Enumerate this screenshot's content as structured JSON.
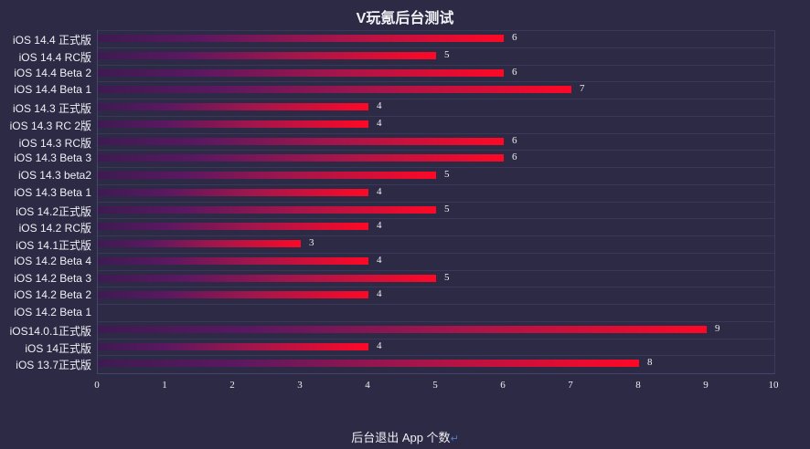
{
  "title": "V玩氪后台测试",
  "xlabel": "后台退出 App 个数",
  "xlabel_mark": "↵",
  "colors": {
    "background": "#2c2a45",
    "bar_start": "#3e1a52",
    "bar_end": "#ff0826",
    "text": "#f0f0f4"
  },
  "chart_data": {
    "type": "bar",
    "orientation": "horizontal",
    "title": "V玩氪后台测试",
    "xlabel": "后台退出 App 个数",
    "ylabel": "",
    "xlim": [
      0,
      10
    ],
    "xticks": [
      0,
      1,
      2,
      3,
      4,
      5,
      6,
      7,
      8,
      9,
      10
    ],
    "grid": true,
    "categories": [
      "iOS 14.4 正式版",
      "iOS 14.4 RC版",
      "iOS 14.4 Beta 2",
      "iOS 14.4 Beta 1",
      "iOS 14.3 正式版",
      "iOS 14.3 RC 2版",
      "iOS 14.3 RC版",
      "iOS 14.3 Beta 3",
      "iOS 14.3 beta2",
      "iOS 14.3 Beta 1",
      "iOS 14.2正式版",
      "iOS 14.2 RC版",
      "iOS 14.1正式版",
      "iOS 14.2 Beta 4",
      "iOS 14.2 Beta 3",
      "iOS 14.2 Beta 2",
      "iOS 14.2 Beta 1",
      "iOS14.0.1正式版",
      "iOS 14正式版",
      "iOS 13.7正式版"
    ],
    "values": [
      6,
      5,
      6,
      7,
      4,
      4,
      6,
      6,
      5,
      4,
      5,
      4,
      3,
      4,
      5,
      4,
      null,
      9,
      4,
      8
    ]
  },
  "rows": [
    {
      "label": "iOS 14.4 正式版",
      "value": "6"
    },
    {
      "label": "iOS 14.4 RC版",
      "value": "5"
    },
    {
      "label": "iOS 14.4 Beta 2",
      "value": "6"
    },
    {
      "label": "iOS 14.4 Beta 1",
      "value": "7"
    },
    {
      "label": "iOS 14.3 正式版",
      "value": "4"
    },
    {
      "label": "iOS 14.3 RC 2版",
      "value": "4"
    },
    {
      "label": "iOS 14.3 RC版",
      "value": "6"
    },
    {
      "label": "iOS 14.3 Beta 3",
      "value": "6"
    },
    {
      "label": "iOS 14.3 beta2",
      "value": "5"
    },
    {
      "label": "iOS 14.3 Beta 1",
      "value": "4"
    },
    {
      "label": "iOS 14.2正式版",
      "value": "5"
    },
    {
      "label": "iOS 14.2 RC版",
      "value": "4"
    },
    {
      "label": "iOS 14.1正式版",
      "value": "3"
    },
    {
      "label": "iOS 14.2 Beta 4",
      "value": "4"
    },
    {
      "label": "iOS 14.2 Beta 3",
      "value": "5"
    },
    {
      "label": "iOS 14.2 Beta 2",
      "value": "4"
    },
    {
      "label": "iOS 14.2 Beta 1",
      "value": ""
    },
    {
      "label": "iOS14.0.1正式版",
      "value": "9"
    },
    {
      "label": "iOS 14正式版",
      "value": "4"
    },
    {
      "label": "iOS 13.7正式版",
      "value": "8"
    }
  ],
  "ticks": [
    "0",
    "1",
    "2",
    "3",
    "4",
    "5",
    "6",
    "7",
    "8",
    "9",
    "10"
  ]
}
